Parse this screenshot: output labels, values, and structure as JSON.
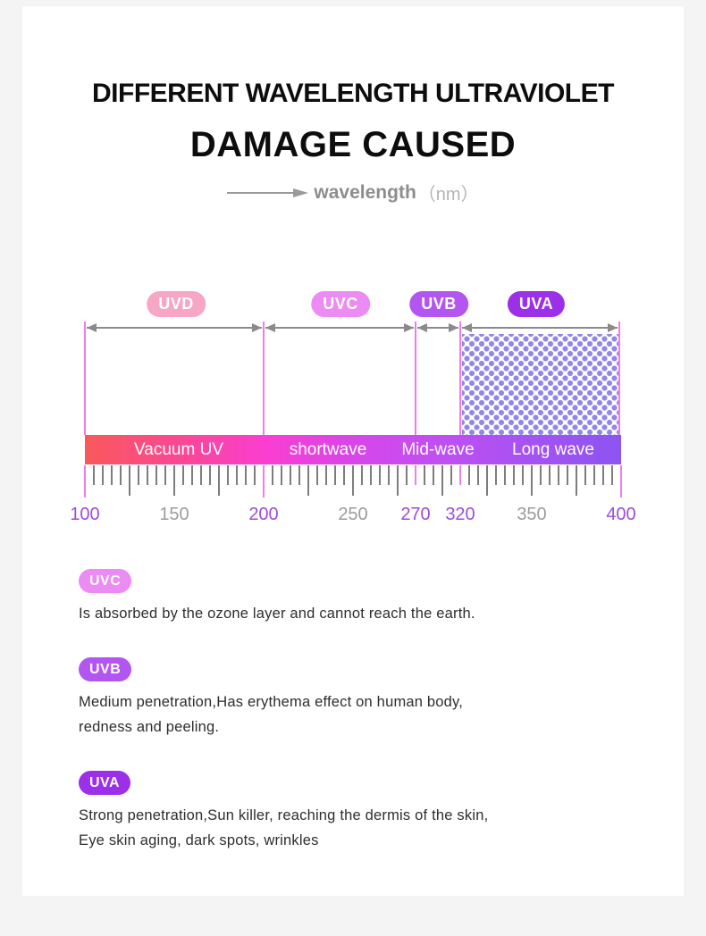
{
  "header": {
    "title_line1": "DIFFERENT WAVELENGTH ULTRAVIOLET",
    "title_line2": "DAMAGE CAUSED",
    "axis_label": "wavelength",
    "axis_unit": "（nm）"
  },
  "colors": {
    "page_bg": "#f4f4f5",
    "card_bg": "#ffffff",
    "scale_line_pink": "#f27ce5",
    "arrow_gray": "#8a8a8a",
    "dots_purple": "#9186ea",
    "tick_gray": "#7d7d7d",
    "tick_pink": "#f27ce5",
    "tick_orchid": "#e583ef",
    "axis_num_highlight": "#9b4ddb",
    "axis_num_gray": "#9c9c9c"
  },
  "chart_data": {
    "type": "band-scale",
    "unit": "nm",
    "axis_range": [
      100,
      400
    ],
    "bands": [
      {
        "name": "UVD",
        "range_nm": [
          100,
          200
        ],
        "bar_label": "Vacuum UV",
        "badge_color": "#f7a6c3",
        "hatched": false
      },
      {
        "name": "UVC",
        "range_nm": [
          200,
          270
        ],
        "bar_label": "shortwave",
        "badge_color": "#ec8bf3",
        "hatched": false
      },
      {
        "name": "UVB",
        "range_nm": [
          270,
          320
        ],
        "bar_label": "Mid-wave",
        "badge_color": "#b355f1",
        "hatched": false
      },
      {
        "name": "UVA",
        "range_nm": [
          320,
          400
        ],
        "bar_label": "Long wave",
        "badge_color": "#9c2fe8",
        "hatched": true
      }
    ],
    "bar_gradient_stops": [
      "#f8595b 0%",
      "#fb4795 18%",
      "#fa3ed2 34%",
      "#d746e8 50%",
      "#c04ff2 66%",
      "#8b55f1 100%"
    ],
    "axis_ticks": [
      {
        "label": "100",
        "highlight": true
      },
      {
        "label": "150",
        "highlight": false
      },
      {
        "label": "200",
        "highlight": true
      },
      {
        "label": "250",
        "highlight": false
      },
      {
        "label": "270",
        "highlight": true
      },
      {
        "label": "320",
        "highlight": true
      },
      {
        "label": "350",
        "highlight": false
      },
      {
        "label": "400",
        "highlight": true
      }
    ]
  },
  "sections": [
    {
      "badge": "UVC",
      "badge_color": "#ec8bf3",
      "lines": [
        "Is absorbed by the ozone layer and cannot reach the earth."
      ]
    },
    {
      "badge": "UVB",
      "badge_color": "#b355f1",
      "lines": [
        "Medium penetration,Has erythema effect on human body,",
        "redness and peeling."
      ]
    },
    {
      "badge": "UVA",
      "badge_color": "#9c2fe8",
      "lines": [
        "Strong penetration,Sun killer, reaching the dermis of the skin,",
        "Eye skin aging, dark spots, wrinkles"
      ]
    }
  ]
}
